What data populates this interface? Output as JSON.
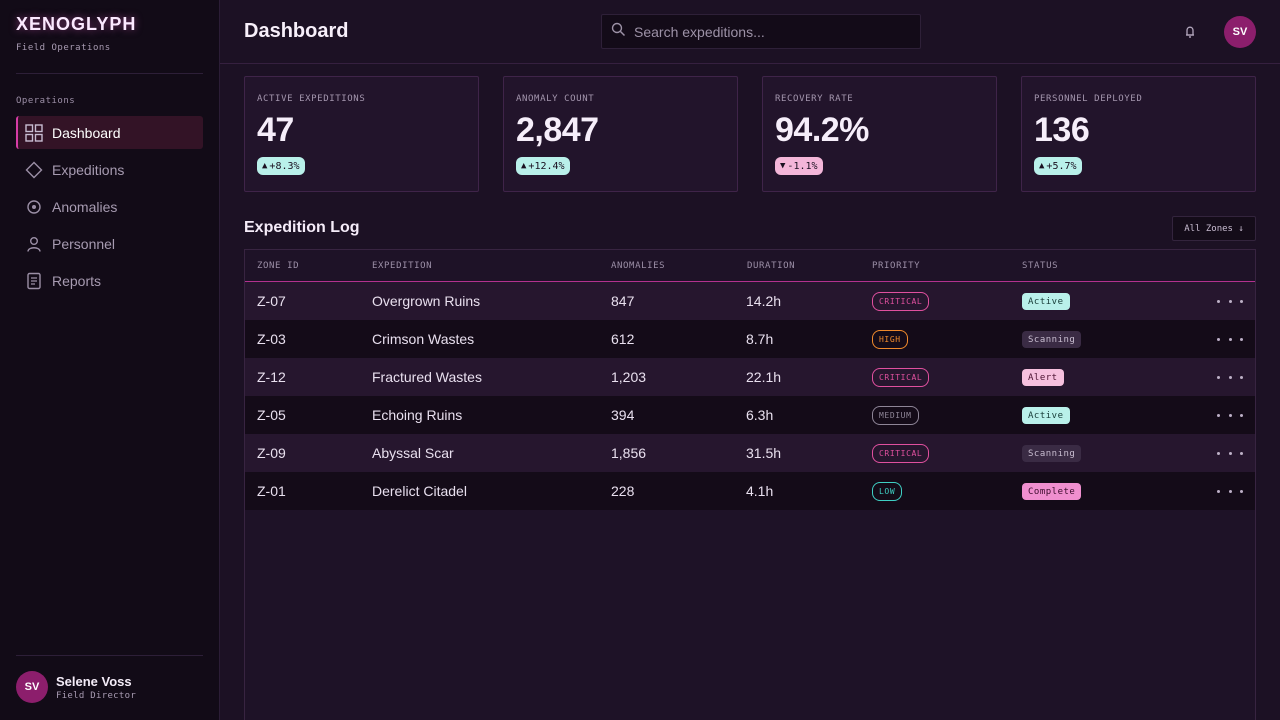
{
  "brand": {
    "name": "XENOGLYPH",
    "subtitle": "Field Operations"
  },
  "nav": {
    "section_label": "Operations",
    "items": [
      {
        "label": "Dashboard",
        "icon": "grid-icon",
        "active": true
      },
      {
        "label": "Expeditions",
        "icon": "diamond-icon",
        "active": false
      },
      {
        "label": "Anomalies",
        "icon": "target-icon",
        "active": false
      },
      {
        "label": "Personnel",
        "icon": "person-icon",
        "active": false
      },
      {
        "label": "Reports",
        "icon": "document-icon",
        "active": false
      }
    ]
  },
  "user": {
    "initials": "SV",
    "name": "Selene Voss",
    "role": "Field Director"
  },
  "header": {
    "title": "Dashboard",
    "search_placeholder": "Search expeditions...",
    "avatar_initials": "SV"
  },
  "kpis": [
    {
      "label": "ACTIVE EXPEDITIONS",
      "value": "47",
      "delta": "+8.3%",
      "direction": "up"
    },
    {
      "label": "ANOMALY COUNT",
      "value": "2,847",
      "delta": "+12.4%",
      "direction": "up"
    },
    {
      "label": "RECOVERY RATE",
      "value": "94.2%",
      "delta": "-1.1%",
      "direction": "down"
    },
    {
      "label": "PERSONNEL DEPLOYED",
      "value": "136",
      "delta": "+5.7%",
      "direction": "up"
    }
  ],
  "log": {
    "title": "Expedition Log",
    "filter_label": "All Zones ↓",
    "columns": [
      "ZONE ID",
      "EXPEDITION",
      "ANOMALIES",
      "DURATION",
      "PRIORITY",
      "STATUS"
    ],
    "rows": [
      {
        "zone": "Z-07",
        "expedition": "Overgrown Ruins",
        "anomalies": "847",
        "duration": "14.2h",
        "priority": "CRITICAL",
        "status": "Active"
      },
      {
        "zone": "Z-03",
        "expedition": "Crimson Wastes",
        "anomalies": "612",
        "duration": "8.7h",
        "priority": "HIGH",
        "status": "Scanning"
      },
      {
        "zone": "Z-12",
        "expedition": "Fractured Wastes",
        "anomalies": "1,203",
        "duration": "22.1h",
        "priority": "CRITICAL",
        "status": "Alert"
      },
      {
        "zone": "Z-05",
        "expedition": "Echoing Ruins",
        "anomalies": "394",
        "duration": "6.3h",
        "priority": "MEDIUM",
        "status": "Active"
      },
      {
        "zone": "Z-09",
        "expedition": "Abyssal Scar",
        "anomalies": "1,856",
        "duration": "31.5h",
        "priority": "CRITICAL",
        "status": "Scanning"
      },
      {
        "zone": "Z-01",
        "expedition": "Derelict Citadel",
        "anomalies": "228",
        "duration": "4.1h",
        "priority": "LOW",
        "status": "Complete"
      }
    ]
  },
  "colors": {
    "accent": "#d63ca6",
    "priority": {
      "CRITICAL": "#e0509f",
      "HIGH": "#f08a2c",
      "MEDIUM": "#8e8597",
      "LOW": "#3fd0c4"
    },
    "status_bg": {
      "Active": "#b9f0ea",
      "Scanning": "#3a2b44",
      "Alert": "#f6c0de",
      "Complete": "#f08fcf"
    },
    "status_fg": {
      "Active": "#163a36",
      "Scanning": "#c8bdd0",
      "Alert": "#4a1030",
      "Complete": "#3b0b2c"
    }
  }
}
